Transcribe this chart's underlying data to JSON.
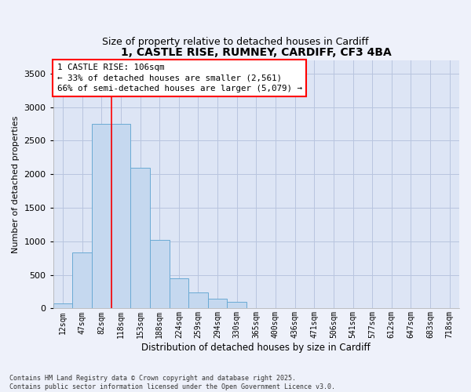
{
  "title_line1": "1, CASTLE RISE, RUMNEY, CARDIFF, CF3 4BA",
  "title_line2": "Size of property relative to detached houses in Cardiff",
  "xlabel": "Distribution of detached houses by size in Cardiff",
  "ylabel": "Number of detached properties",
  "bar_labels": [
    "12sqm",
    "47sqm",
    "82sqm",
    "118sqm",
    "153sqm",
    "188sqm",
    "224sqm",
    "259sqm",
    "294sqm",
    "330sqm",
    "365sqm",
    "400sqm",
    "436sqm",
    "471sqm",
    "506sqm",
    "541sqm",
    "577sqm",
    "612sqm",
    "647sqm",
    "683sqm",
    "718sqm"
  ],
  "bar_values": [
    75,
    830,
    2750,
    2750,
    2100,
    1020,
    450,
    240,
    150,
    100,
    0,
    0,
    0,
    0,
    0,
    0,
    0,
    0,
    0,
    0,
    0
  ],
  "bar_color": "#c5d8ef",
  "bar_edge_color": "#6aaad4",
  "ylim": [
    0,
    3700
  ],
  "yticks": [
    0,
    500,
    1000,
    1500,
    2000,
    2500,
    3000,
    3500
  ],
  "red_line_x": 2.5,
  "annotation_title": "1 CASTLE RISE: 106sqm",
  "annotation_line1": "← 33% of detached houses are smaller (2,561)",
  "annotation_line2": "66% of semi-detached houses are larger (5,079) →",
  "footer_line1": "Contains HM Land Registry data © Crown copyright and database right 2025.",
  "footer_line2": "Contains public sector information licensed under the Open Government Licence v3.0.",
  "background_color": "#eef1fa",
  "plot_bg_color": "#dde5f5",
  "grid_color": "#b8c5df"
}
